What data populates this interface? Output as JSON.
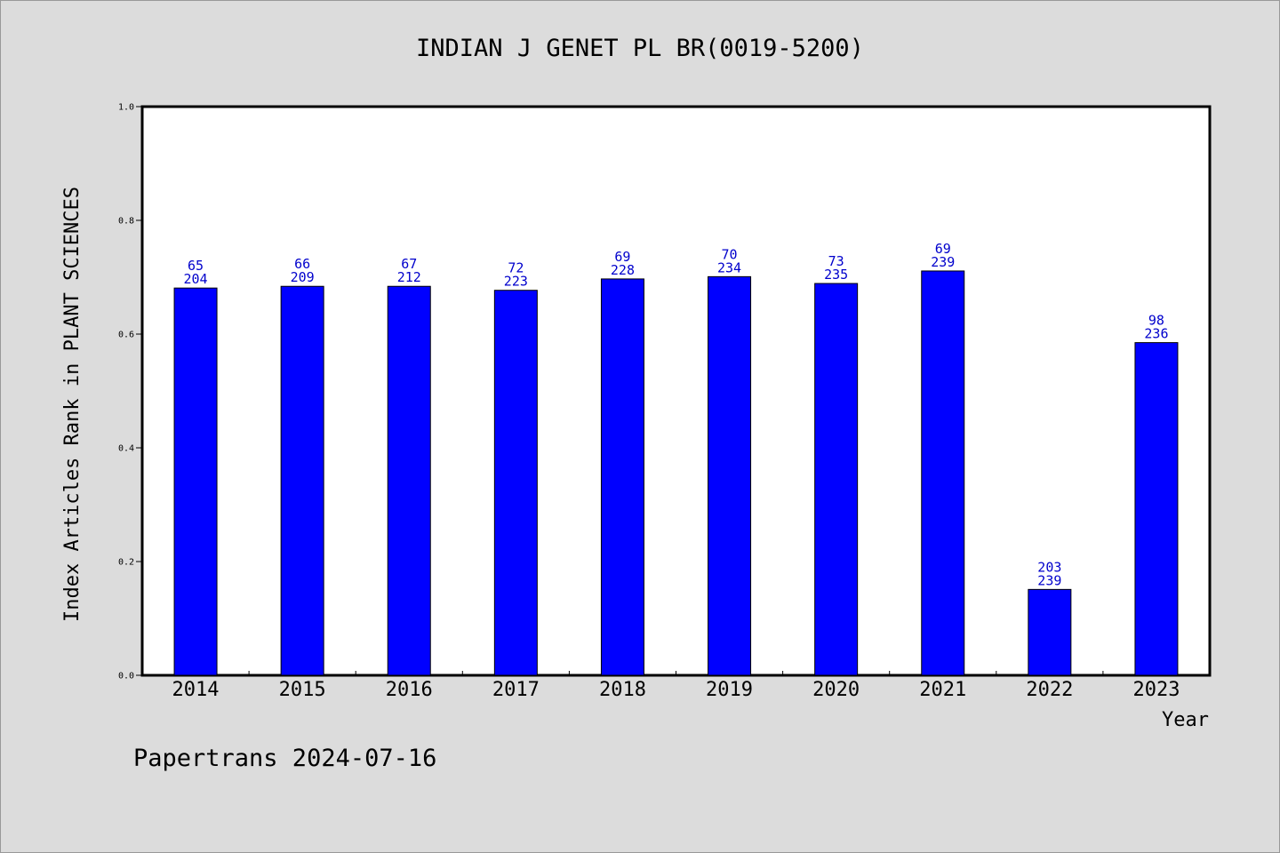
{
  "chart_data": {
    "type": "bar",
    "title": "INDIAN J GENET PL BR(0019-5200)",
    "xlabel": "Year",
    "ylabel": "Index Articles Rank in PLANT SCIENCES",
    "ylim": [
      0,
      1.0
    ],
    "yticks": [
      "0.0",
      "0.2",
      "0.4",
      "0.6",
      "0.8",
      "1.0"
    ],
    "ytick_values": [
      0.0,
      0.2,
      0.4,
      0.6,
      0.8,
      1.0
    ],
    "categories": [
      "2014",
      "2015",
      "2016",
      "2017",
      "2018",
      "2019",
      "2020",
      "2021",
      "2022",
      "2023"
    ],
    "values": [
      0.681,
      0.684,
      0.684,
      0.677,
      0.697,
      0.701,
      0.689,
      0.711,
      0.151,
      0.585
    ],
    "rank_labels": [
      "65",
      "66",
      "67",
      "72",
      "69",
      "70",
      "73",
      "69",
      "203",
      "98"
    ],
    "total_labels": [
      "204",
      "209",
      "212",
      "223",
      "228",
      "234",
      "235",
      "239",
      "239",
      "236"
    ],
    "bar_color": "#0000ff",
    "label_color": "#0000cc",
    "grid": false,
    "legend": "none"
  },
  "footer": {
    "text": "Papertrans 2024-07-16"
  }
}
